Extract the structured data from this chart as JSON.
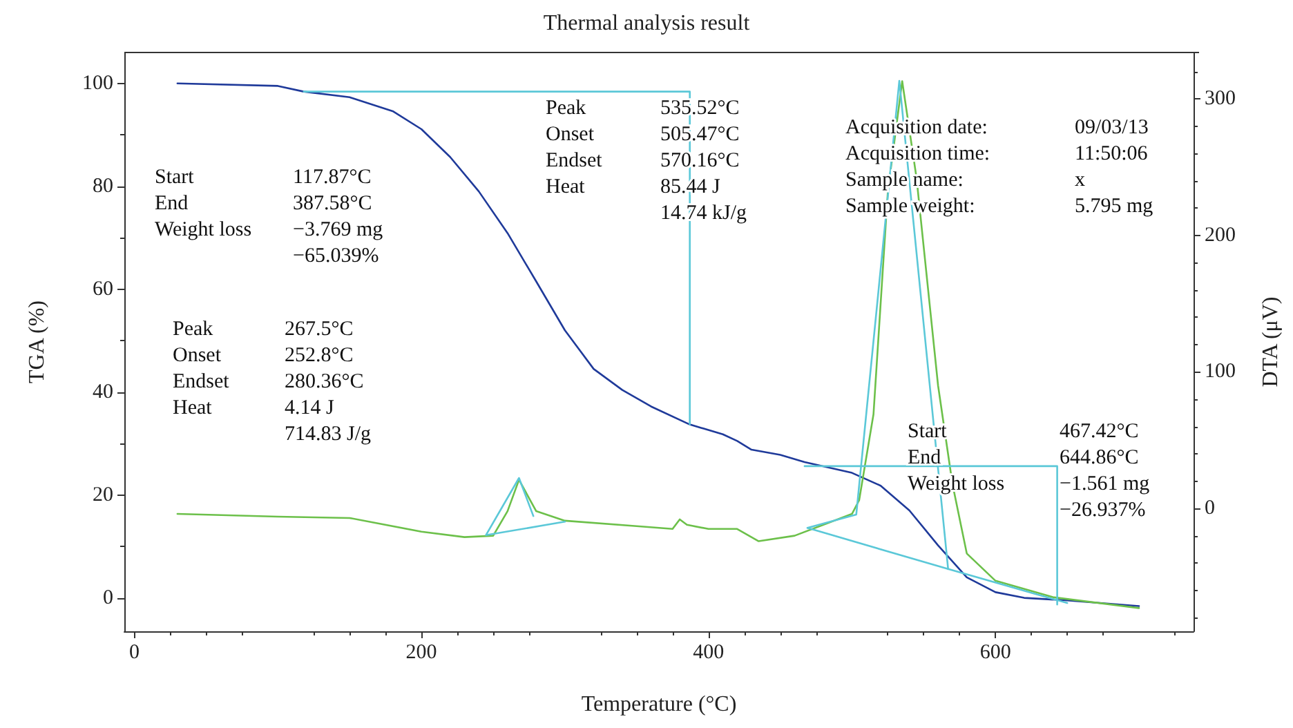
{
  "chart_data": {
    "type": "line",
    "title": "Thermal analysis result",
    "xlabel": "Temperature (°C)",
    "ylabel": "TGA (%)",
    "y2label": "DTA (μV)",
    "xlim": [
      -7,
      738
    ],
    "xticks": [
      0,
      200,
      400,
      600
    ],
    "ylim": [
      -6.5,
      106
    ],
    "yticks": [
      0,
      20,
      40,
      60,
      80,
      100
    ],
    "y2lim": [
      -90,
      334
    ],
    "y2ticks": [
      0,
      100,
      200,
      300
    ],
    "grid": false,
    "marker": "none",
    "line_style": "solid",
    "series": [
      {
        "color": "#1f3a9a",
        "x": [
          30,
          100,
          118,
          150,
          180,
          200,
          220,
          240,
          260,
          280,
          300,
          320,
          340,
          360,
          387,
          410,
          420,
          430,
          450,
          467,
          500,
          520,
          540,
          560,
          580,
          600,
          620,
          650,
          700
        ],
        "values": [
          100,
          99.5,
          98.4,
          97.3,
          94.6,
          91.1,
          85.7,
          79,
          70.9,
          61.5,
          52,
          44.5,
          40.4,
          37.2,
          33.7,
          31.8,
          30.5,
          28.8,
          27.8,
          26.4,
          24.3,
          21.8,
          17,
          10.2,
          4,
          1.1,
          0,
          -0.5,
          -1.6
        ]
      },
      {
        "color": "#6cc04a",
        "axis": "y2",
        "x": [
          30,
          100,
          150,
          200,
          230,
          250,
          260,
          268,
          280,
          300,
          350,
          375,
          380,
          385,
          400,
          420,
          435,
          460,
          500,
          505,
          515,
          525,
          535,
          545,
          560,
          570,
          580,
          600,
          640,
          700
        ],
        "values": [
          -4,
          -6,
          -7,
          -17,
          -21,
          -20,
          -2,
          21,
          -2,
          -9,
          -13,
          -15,
          -8,
          -12,
          -15,
          -15,
          -24,
          -20,
          -4,
          6,
          69,
          232,
          313,
          242,
          90,
          18,
          -33,
          -53,
          -65,
          -73
        ]
      },
      {
        "color": "#5bc8d8",
        "x": [
          118,
          387,
          387
        ],
        "values": [
          98.4,
          98.4,
          33.7
        ]
      },
      {
        "color": "#5bc8d8",
        "x": [
          467,
          643,
          643
        ],
        "values": [
          25.6,
          25.6,
          -1.3
        ]
      },
      {
        "color": "#5bc8d8",
        "x": [
          300,
          245,
          268,
          278
        ],
        "values": [
          14.8,
          12.2,
          23.3,
          15.9
        ]
      },
      {
        "color": "#5bc8d8",
        "x": [
          469,
          503,
          533,
          567
        ],
        "values": [
          13.6,
          16.2,
          100.5,
          5.6
        ]
      },
      {
        "color": "#5bc8d8",
        "x": [
          469,
          567,
          650
        ],
        "values": [
          13.6,
          5.6,
          -1.0
        ]
      }
    ],
    "annotations": [
      "Start\nEnd\nWeight loss",
      "117.87°C\n387.58°C\n−3.769 mg\n−65.039%",
      "Peak\nOnset\nEndset\nHeat",
      "267.5°C\n252.8°C\n280.36°C\n4.14 J\n714.83 J/g",
      "Peak\nOnset\nEndset\nHeat",
      "535.52°C\n505.47°C\n570.16°C\n85.44 J\n14.74 kJ/g",
      "Acquisition date:\nAcquisition time:\nSample name:\nSample weight:",
      "09/03/13\n11:50:06\nx\n5.795 mg",
      "Start\nEnd\nWeight loss",
      "467.42°C\n644.86°C\n−1.561 mg\n−26.937%"
    ]
  }
}
